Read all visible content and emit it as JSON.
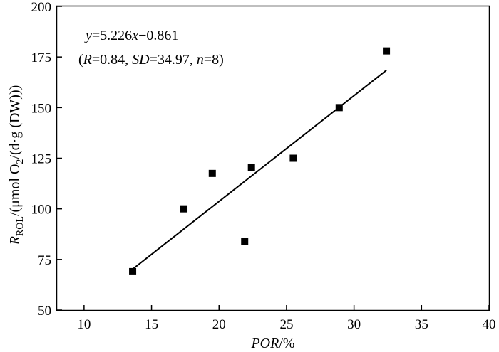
{
  "chart_data": {
    "type": "scatter",
    "title": "",
    "xlabel": {
      "italic": "POR",
      "suffix": "/%"
    },
    "ylabel": {
      "r": "R",
      "r_sub": "ROL",
      "part1": "/(μmol O",
      "o2_sub": "2",
      "part2": "/(d·g (DW)))"
    },
    "xlim": [
      8,
      40
    ],
    "ylim": [
      50,
      200
    ],
    "xticks": [
      10,
      15,
      20,
      25,
      30,
      35,
      40
    ],
    "yticks": [
      50,
      75,
      100,
      125,
      150,
      175,
      200
    ],
    "grid": false,
    "points": {
      "x": [
        13.6,
        17.4,
        19.5,
        21.9,
        22.4,
        25.5,
        28.9,
        32.4
      ],
      "y": [
        69,
        100,
        117.5,
        84,
        120.5,
        125,
        150,
        178
      ]
    },
    "fit_line": {
      "slope": 5.226,
      "intercept": -0.861,
      "x_range": [
        13.6,
        32.4
      ]
    },
    "annotation": {
      "equation": {
        "y": "y",
        "eq": "=5.226",
        "x": "x",
        "rest": "−0.861"
      },
      "stats": {
        "open": "(",
        "R": "R",
        "r_val": "=0.84, ",
        "SD": "SD",
        "sd_val": "=34.97, ",
        "n": "n",
        "n_val": "=8)"
      }
    }
  }
}
